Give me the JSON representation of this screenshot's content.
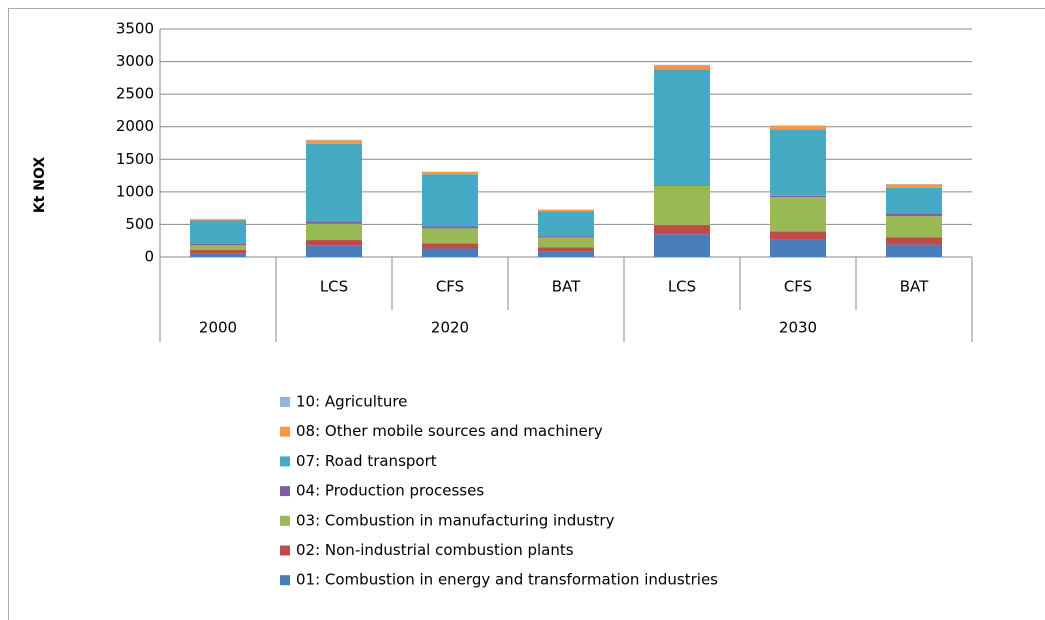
{
  "chart_data": {
    "type": "stacked_bar",
    "y_label": "Kt NOX",
    "categories": [
      null,
      "LCS",
      "CFS",
      "BAT",
      "LCS",
      "CFS",
      "BAT"
    ],
    "groups": [
      {
        "label": "2000",
        "size": 1
      },
      {
        "label": "2020",
        "size": 3
      },
      {
        "label": "2030",
        "size": 3
      }
    ],
    "series": [
      {
        "name": "01: Combustion in energy and transformation industries",
        "color": "#4a7ebb",
        "values": [
          60,
          180,
          130,
          90,
          350,
          270,
          190
        ]
      },
      {
        "name": "02: Non-industrial combustion plants",
        "color": "#be4b48",
        "values": [
          50,
          80,
          80,
          60,
          140,
          120,
          110
        ]
      },
      {
        "name": "03: Combustion in manufacturing industry",
        "color": "#98b954",
        "values": [
          70,
          250,
          230,
          150,
          600,
          530,
          330
        ]
      },
      {
        "name": "04: Production processes",
        "color": "#7d60a0",
        "values": [
          20,
          40,
          30,
          20,
          10,
          20,
          30
        ]
      },
      {
        "name": "07: Road transport",
        "color": "#46aac5",
        "values": [
          360,
          1190,
          800,
          380,
          1780,
          1020,
          400
        ]
      },
      {
        "name": "08: Other mobile sources and machinery",
        "color": "#f79646",
        "values": [
          20,
          50,
          35,
          25,
          60,
          55,
          55
        ]
      },
      {
        "name": "10: Agriculture",
        "color": "#95b3d7",
        "values": [
          5,
          10,
          5,
          5,
          10,
          5,
          5
        ]
      }
    ],
    "ylim": [
      0,
      3500
    ],
    "yticks": [
      0,
      500,
      1000,
      1500,
      2000,
      2500,
      3000,
      3500
    ],
    "grid": true
  }
}
